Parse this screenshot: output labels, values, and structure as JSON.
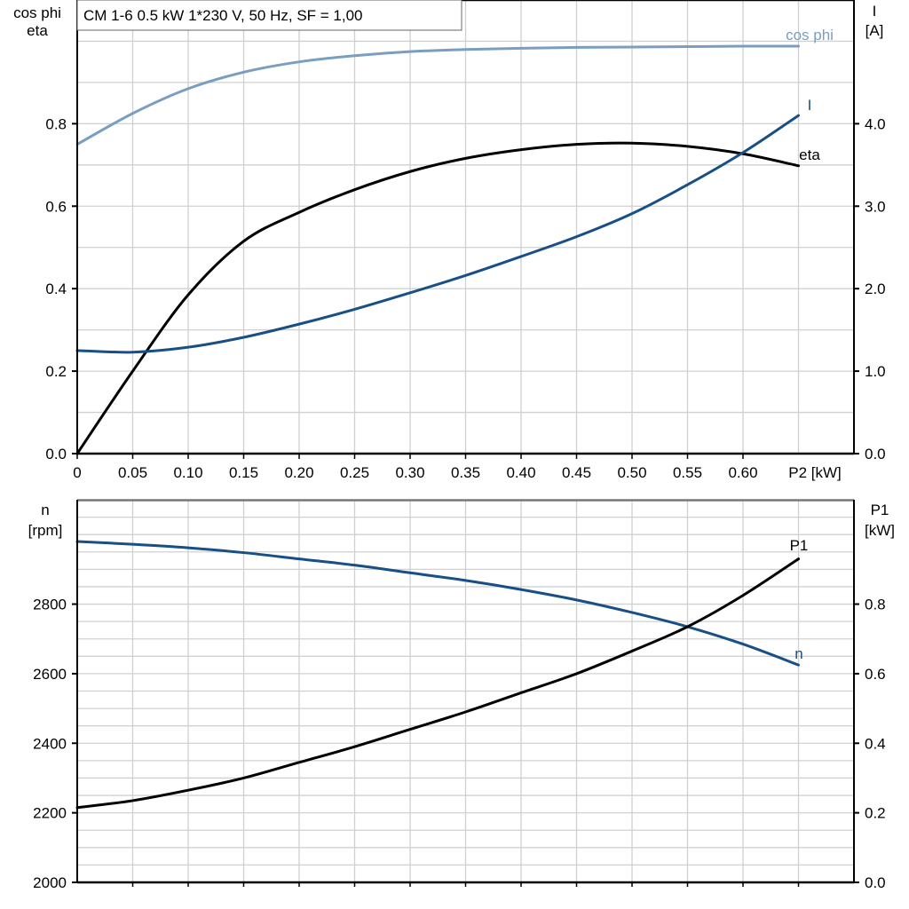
{
  "title": "CM 1-6   0.5 kW   1*230 V, 50 Hz, SF = 1,00",
  "colors": {
    "cos_phi": "#7a9ec0",
    "I": "#174f86",
    "n": "#174f86",
    "eta": "#000000",
    "P1": "#000000",
    "grid": "#d0d0d0"
  },
  "chart_data": [
    {
      "type": "line",
      "title": "CM 1-6   0.5 kW   1*230 V, 50 Hz, SF = 1,00",
      "xlabel": "P2 [kW]",
      "xlim": [
        0,
        0.7
      ],
      "xticks": [
        "0",
        "0.05",
        "0.10",
        "0.15",
        "0.20",
        "0.25",
        "0.30",
        "0.35",
        "0.40",
        "0.45",
        "0.50",
        "0.55",
        "0.60"
      ],
      "ylabel_left": [
        "cos phi",
        "eta"
      ],
      "ylim_left": [
        0,
        1.1
      ],
      "yticks_left": [
        "0.0",
        "0.2",
        "0.4",
        "0.6",
        "0.8"
      ],
      "ylabel_right": [
        "I",
        "[A]"
      ],
      "ylim_right": [
        0,
        5.5
      ],
      "yticks_right": [
        "0.0",
        "1.0",
        "2.0",
        "3.0",
        "4.0"
      ],
      "grid": true,
      "x": [
        0,
        0.05,
        0.1,
        0.15,
        0.2,
        0.25,
        0.3,
        0.35,
        0.4,
        0.45,
        0.5,
        0.55,
        0.6,
        0.65
      ],
      "series": [
        {
          "name": "cos phi",
          "axis": "left",
          "values": [
            0.75,
            0.825,
            0.885,
            0.925,
            0.95,
            0.965,
            0.975,
            0.98,
            0.983,
            0.985,
            0.986,
            0.987,
            0.988,
            0.988
          ]
        },
        {
          "name": "eta",
          "axis": "left",
          "values": [
            0.0,
            0.2,
            0.385,
            0.515,
            0.585,
            0.64,
            0.684,
            0.716,
            0.737,
            0.75,
            0.753,
            0.745,
            0.727,
            0.698
          ]
        },
        {
          "name": "I",
          "axis": "right",
          "values": [
            1.25,
            1.23,
            1.29,
            1.41,
            1.57,
            1.75,
            1.95,
            2.16,
            2.39,
            2.63,
            2.91,
            3.26,
            3.65,
            4.1
          ]
        }
      ]
    },
    {
      "type": "line",
      "xlim": [
        0,
        0.7
      ],
      "ylabel_left": [
        "n",
        "[rpm]"
      ],
      "ylim_left": [
        2000,
        3100
      ],
      "yticks_left": [
        "2000",
        "2200",
        "2400",
        "2600",
        "2800"
      ],
      "ylabel_right": [
        "P1",
        "[kW]"
      ],
      "ylim_right": [
        0,
        1.1
      ],
      "yticks_right": [
        "0.0",
        "0.2",
        "0.4",
        "0.6",
        "0.8"
      ],
      "grid": true,
      "x": [
        0,
        0.05,
        0.1,
        0.15,
        0.2,
        0.25,
        0.3,
        0.35,
        0.4,
        0.45,
        0.5,
        0.55,
        0.6,
        0.65
      ],
      "series": [
        {
          "name": "n",
          "axis": "left",
          "values": [
            2980,
            2972,
            2962,
            2948,
            2930,
            2912,
            2890,
            2868,
            2842,
            2812,
            2776,
            2735,
            2685,
            2625
          ]
        },
        {
          "name": "P1",
          "axis": "right",
          "values": [
            0.215,
            0.235,
            0.265,
            0.3,
            0.345,
            0.39,
            0.44,
            0.49,
            0.545,
            0.6,
            0.665,
            0.735,
            0.825,
            0.93
          ]
        }
      ]
    }
  ]
}
